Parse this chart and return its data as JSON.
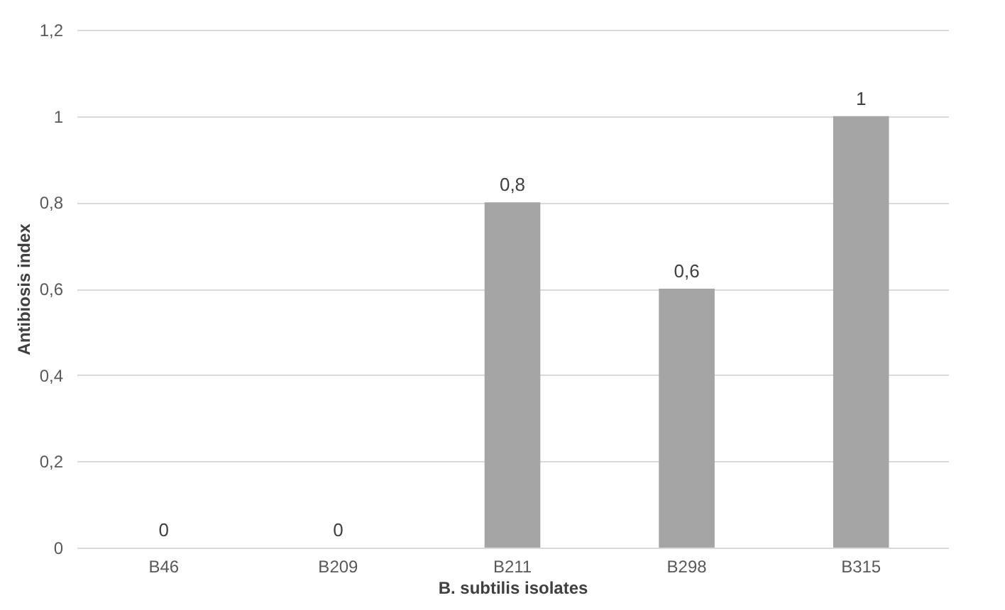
{
  "chart_data": {
    "type": "bar",
    "xlabel": "B. subtilis isolates",
    "ylabel": "Antibiosis index",
    "categories": [
      "B46",
      "B209",
      "B211",
      "B298",
      "B315"
    ],
    "values": [
      0,
      0,
      0.8,
      0.6,
      1
    ],
    "color": "#a5a5a5",
    "value_labels": [
      "0",
      "0",
      "0,8",
      "0,6",
      "1"
    ],
    "ylim": [
      0,
      1.2
    ],
    "yticks": [
      0,
      {
        "value": 0.2,
        "label": "0,2"
      },
      {
        "value": 0.4,
        "label": "0,4"
      },
      {
        "value": 0.6,
        "label": "0,6"
      },
      {
        "value": 0.8,
        "label": "0,8"
      },
      1,
      {
        "value": 1.2,
        "label": "1,2"
      }
    ],
    "grid": "y"
  }
}
